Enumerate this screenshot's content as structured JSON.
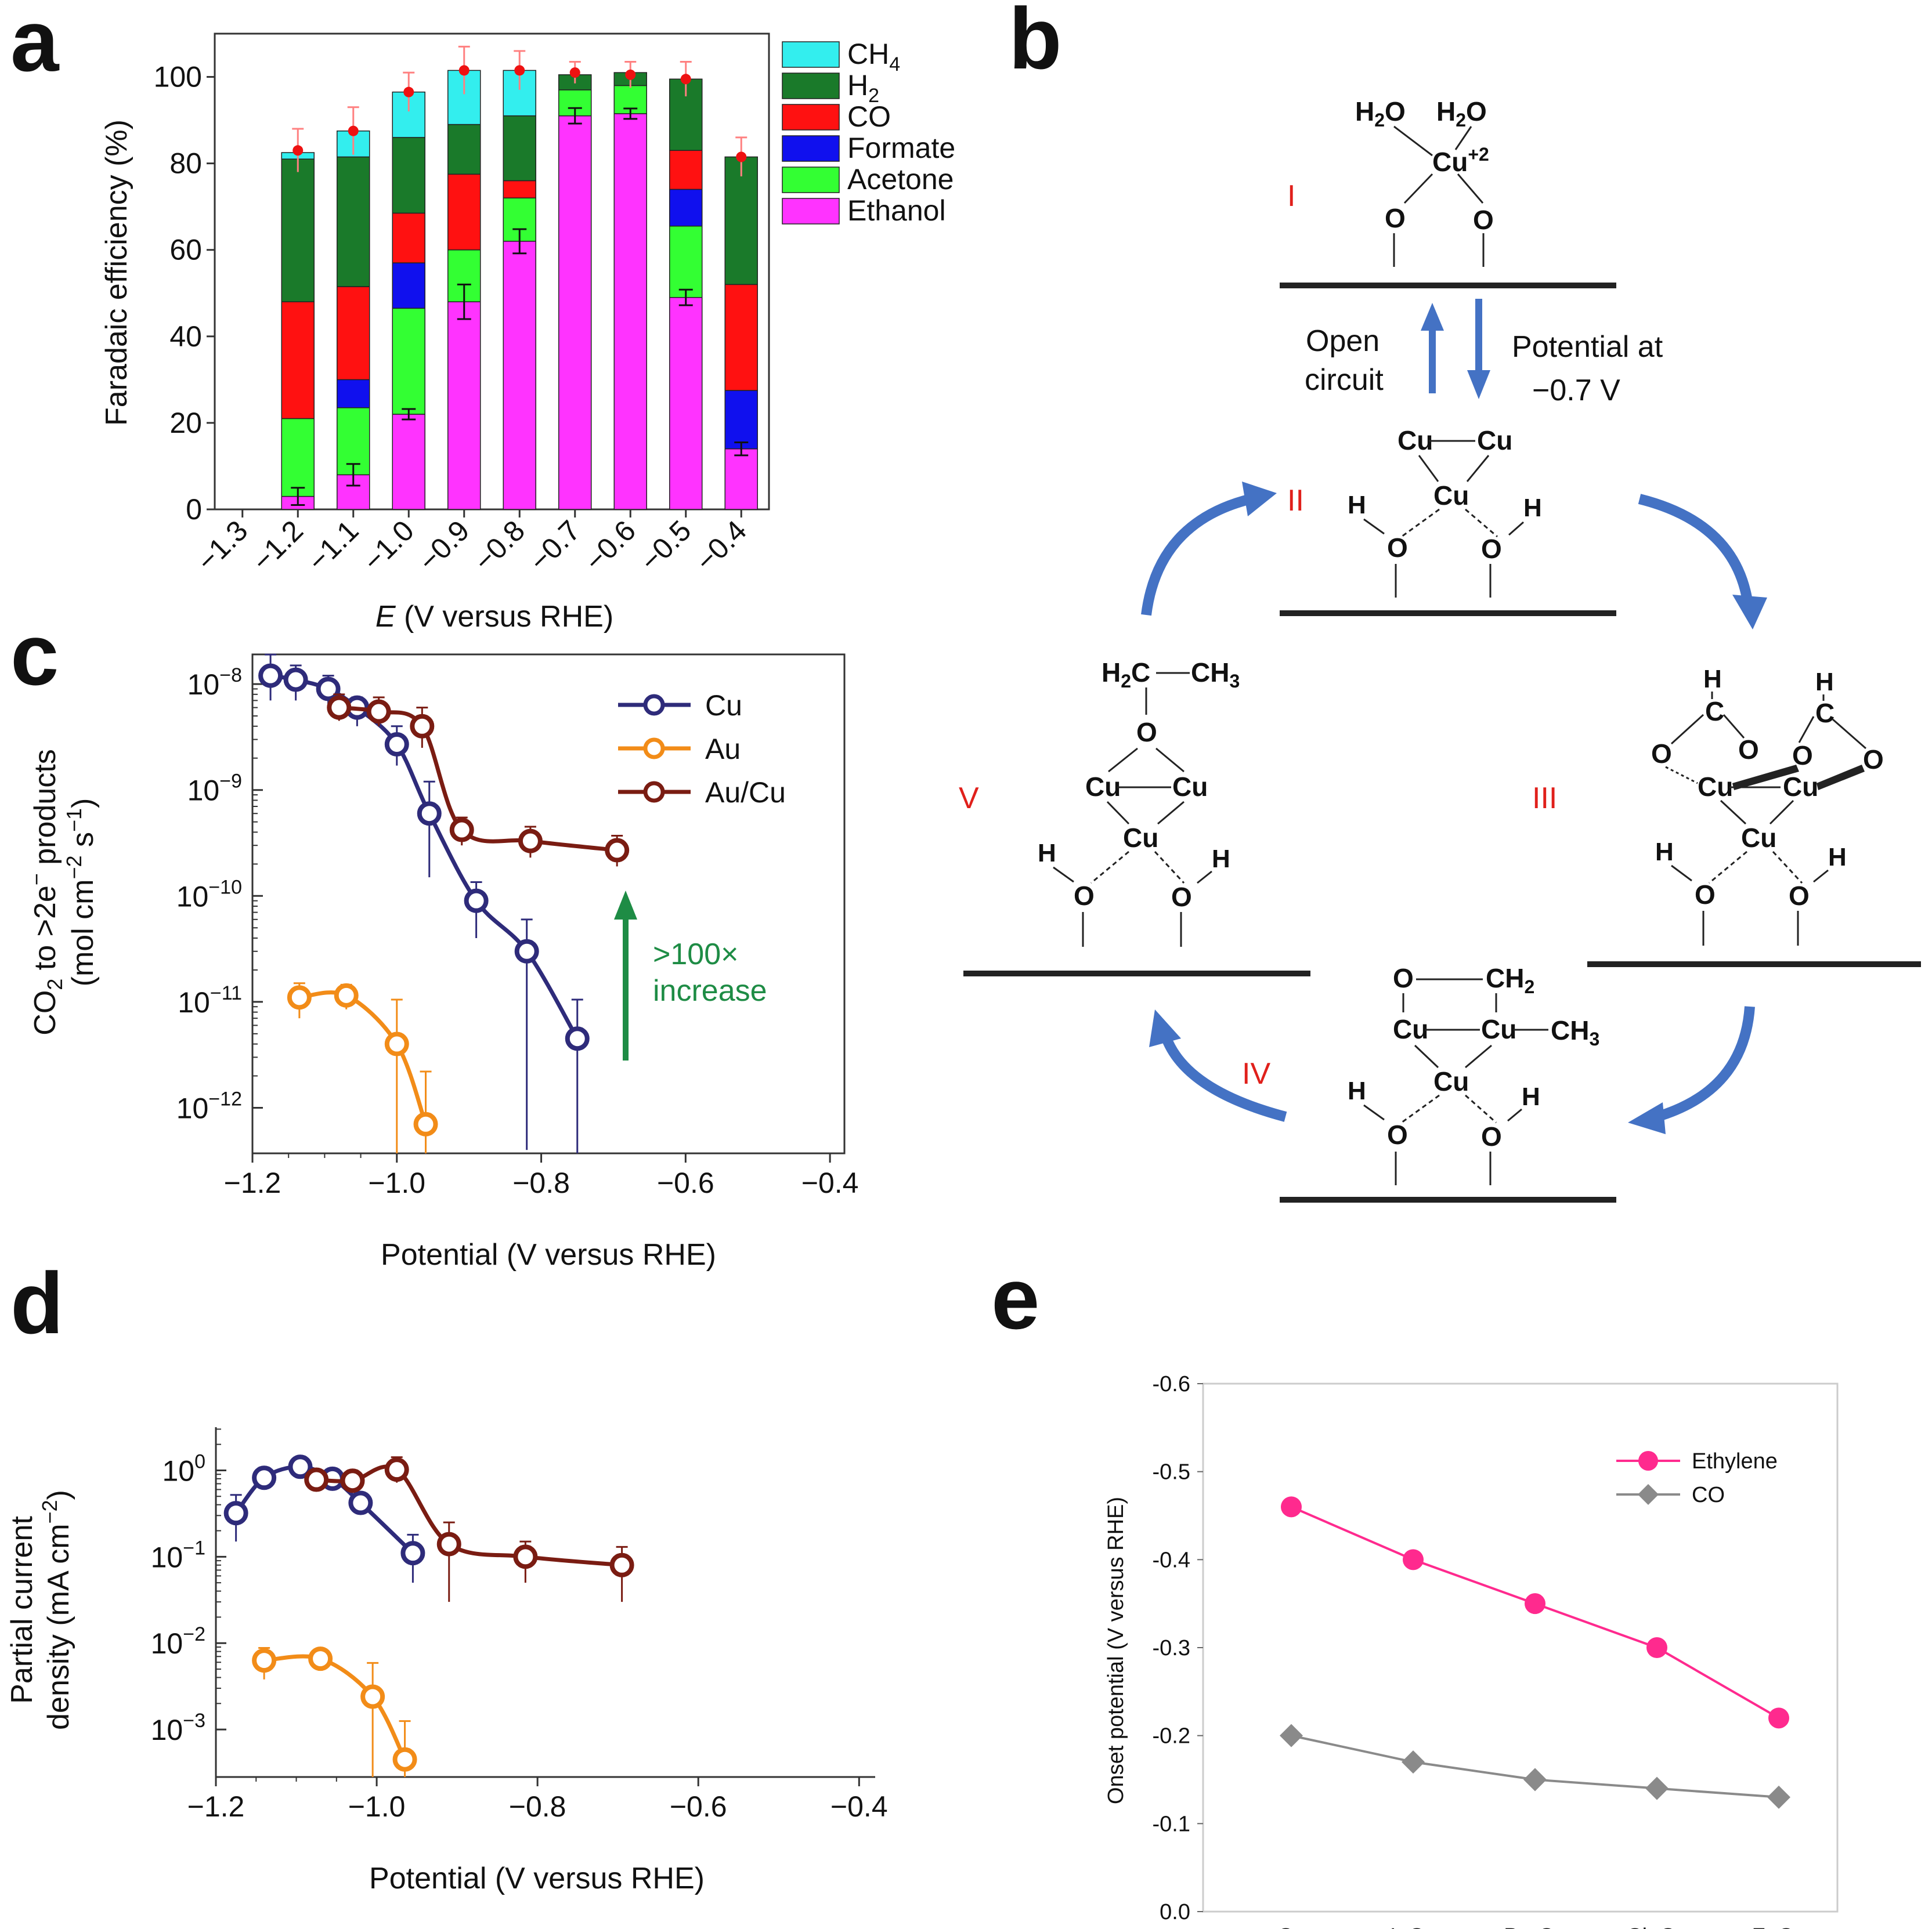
{
  "chart_data": [
    {
      "panel": "a",
      "type": "bar",
      "stacked": true,
      "xlabel_italic": "E",
      "xlabel_rest": " (V versus RHE)",
      "ylabel": "Faradaic efficiency (%)",
      "ylim": [
        0,
        110
      ],
      "yticks": [
        0,
        20,
        40,
        60,
        80,
        100
      ],
      "xtick_labels": [
        "−1.3",
        "−1.2",
        "−1.1",
        "−1.0",
        "−0.9",
        "−0.8",
        "−0.7",
        "−0.6",
        "−0.5",
        "−0.4"
      ],
      "categories": [
        "−1.2",
        "−1.1",
        "−1.0",
        "−0.9",
        "−0.8",
        "−0.7",
        "−0.6",
        "−0.5",
        "−0.4"
      ],
      "legend": [
        {
          "main": "CH",
          "sub": "4"
        },
        {
          "main": "H",
          "sub": "2"
        },
        {
          "main": "CO",
          "sub": ""
        },
        {
          "main": "Formate",
          "sub": ""
        },
        {
          "main": "Acetone",
          "sub": ""
        },
        {
          "main": "Ethanol",
          "sub": ""
        }
      ],
      "series": [
        {
          "name": "Ethanol",
          "color": "#ff33ff",
          "values": [
            3,
            8,
            22,
            48,
            62,
            91,
            91.5,
            49,
            14
          ]
        },
        {
          "name": "Acetone",
          "color": "#33ff33",
          "values": [
            18,
            15.5,
            24.5,
            12,
            10,
            6,
            6.5,
            16.5,
            0
          ]
        },
        {
          "name": "Formate",
          "color": "#1010ee",
          "values": [
            0,
            6.5,
            10.5,
            0,
            0,
            0,
            0,
            8.5,
            13.5
          ]
        },
        {
          "name": "CO",
          "color": "#ff1111",
          "values": [
            27,
            21.5,
            11.5,
            17.5,
            4,
            0,
            0,
            9,
            24.5
          ]
        },
        {
          "name": "H2",
          "color": "#1a7a2a",
          "values": [
            33,
            30,
            17.5,
            11.5,
            15,
            3.5,
            3,
            16.5,
            29.5
          ]
        },
        {
          "name": "CH4",
          "color": "#33eeee",
          "values": [
            1.5,
            6,
            10.5,
            12.5,
            10.5,
            0,
            0,
            0,
            0
          ]
        }
      ],
      "total_points": [
        83,
        87.5,
        96.5,
        101.5,
        101.5,
        101,
        100.5,
        99.5,
        81.5
      ],
      "total_err": [
        5,
        5.5,
        4.5,
        5.5,
        4.5,
        2.5,
        3,
        4,
        4.5
      ],
      "ethanol_err": [
        2,
        2.5,
        1.2,
        4,
        2.8,
        1.8,
        1.2,
        1.8,
        1.5
      ]
    },
    {
      "panel": "c",
      "type": "line",
      "yscale": "log",
      "xlabel": "Potential (V versus RHE)",
      "ylabel_line1": "CO",
      "ylabel_line1_sub": "2",
      "ylabel_line1_rest": " to >2e",
      "ylabel_line1_sup": "−",
      "ylabel_line1_end": " products",
      "ylabel_line2_a": "(mol cm",
      "ylabel_line2_sup1": "−2",
      "ylabel_line2_b": " s",
      "ylabel_line2_sup2": "−1",
      "ylabel_line2_c": ")",
      "xlim": [
        -1.2,
        -0.38
      ],
      "xticks": [
        -1.2,
        -1.0,
        -0.8,
        -0.6,
        -0.4
      ],
      "xtick_labels": [
        "−1.2",
        "−1.0",
        "−0.8",
        "−0.6",
        "−0.4"
      ],
      "ytick_labels": [
        {
          "base": "10",
          "exp": "−8"
        },
        {
          "base": "10",
          "exp": "−9"
        },
        {
          "base": "10",
          "exp": "−10"
        },
        {
          "base": "10",
          "exp": "−11"
        },
        {
          "base": "10",
          "exp": "−12"
        }
      ],
      "annotation_line1": ">100×",
      "annotation_line2": "increase",
      "series": [
        {
          "name": "Cu",
          "color": "#2e2b7a",
          "x": [
            -1.175,
            -1.14,
            -1.095,
            -1.055,
            -1.0,
            -0.955,
            -0.89,
            -0.82,
            -0.75
          ],
          "y": [
            1.2e-08,
            1.1e-08,
            9e-09,
            6e-09,
            2.7e-09,
            6e-10,
            9e-11,
            3e-11,
            4.5e-12
          ],
          "err_lo": [
            5e-09,
            4e-09,
            3e-09,
            2e-09,
            1e-09,
            4.5e-10,
            5e-11,
            2.96e-11,
            4.4e-12
          ],
          "err_hi": [
            7e-09,
            4e-09,
            3e-09,
            1.5e-09,
            1.3e-09,
            6e-10,
            4.5e-11,
            3e-11,
            6e-12
          ]
        },
        {
          "name": "Au",
          "color": "#f28c18",
          "x": [
            -1.135,
            -1.07,
            -1.0,
            -0.96
          ],
          "y": [
            1.1e-11,
            1.15e-11,
            4e-12,
            7e-13
          ],
          "err_lo": [
            4e-12,
            3e-12,
            3.99e-12,
            6.9e-13
          ],
          "err_hi": [
            4e-12,
            3e-12,
            6.5e-12,
            1.5e-12
          ]
        },
        {
          "name": "Au/Cu",
          "color": "#7a1c12",
          "x": [
            -1.08,
            -1.025,
            -0.965,
            -0.91,
            -0.815,
            -0.695
          ],
          "y": [
            6e-09,
            5.5e-09,
            4e-09,
            4.2e-10,
            3.3e-10,
            2.7e-10
          ],
          "err_lo": [
            1.5e-09,
            1.5e-09,
            1.5e-09,
            1.2e-10,
            1e-10,
            8e-11
          ],
          "err_hi": [
            2e-09,
            2e-09,
            2e-09,
            1.3e-10,
            1.2e-10,
            1e-10
          ]
        }
      ]
    },
    {
      "panel": "d",
      "type": "line",
      "yscale": "log",
      "xlabel": "Potential (V versus RHE)",
      "ylabel_line1": "Partial current",
      "ylabel_line2_a": "density (mA cm",
      "ylabel_line2_sup": "−2",
      "ylabel_line2_c": ")",
      "xlim": [
        -1.2,
        -0.38
      ],
      "xticks": [
        -1.2,
        -1.0,
        -0.8,
        -0.6,
        -0.4
      ],
      "xtick_labels": [
        "−1.2",
        "−1.0",
        "−0.8",
        "−0.6",
        "−0.4"
      ],
      "ytick_labels": [
        {
          "base": "10",
          "exp": "0"
        },
        {
          "base": "10",
          "exp": "−1"
        },
        {
          "base": "10",
          "exp": "−2"
        },
        {
          "base": "10",
          "exp": "−3"
        }
      ],
      "series": [
        {
          "name": "Cu",
          "color": "#2e2b7a",
          "x": [
            -1.175,
            -1.14,
            -1.095,
            -1.055,
            -1.02,
            -0.955
          ],
          "y": [
            0.32,
            0.82,
            1.1,
            0.8,
            0.42,
            0.11
          ],
          "err_lo": [
            0.17,
            0.15,
            0.2,
            0.15,
            0.1,
            0.06
          ],
          "err_hi": [
            0.2,
            0.15,
            0.2,
            0.15,
            0.12,
            0.07
          ]
        },
        {
          "name": "Au",
          "color": "#f28c18",
          "x": [
            -1.14,
            -1.07,
            -1.005,
            -0.965
          ],
          "y": [
            0.0063,
            0.0066,
            0.0024,
            0.00045
          ],
          "err_lo": [
            0.0025,
            0.0015,
            0.0023,
            0.00044
          ],
          "err_hi": [
            0.0025,
            0.0015,
            0.0035,
            0.0008
          ]
        },
        {
          "name": "Au/Cu",
          "color": "#7a1c12",
          "x": [
            -1.075,
            -1.03,
            -0.975,
            -0.91,
            -0.815,
            -0.695
          ],
          "y": [
            0.78,
            0.76,
            1.02,
            0.14,
            0.1,
            0.08
          ],
          "err_lo": [
            0.15,
            0.15,
            0.3,
            0.11,
            0.05,
            0.05
          ],
          "err_hi": [
            0.15,
            0.15,
            0.4,
            0.11,
            0.05,
            0.05
          ]
        }
      ]
    },
    {
      "panel": "e",
      "type": "line",
      "xlabel": "",
      "ylabel": "Onset potential (V versus RHE)",
      "ylim": [
        0.0,
        -0.6
      ],
      "ytick_labels": [
        "0.0",
        "-0.1",
        "-0.2",
        "-0.3",
        "-0.4",
        "-0.5",
        "-0.6"
      ],
      "categories": [
        "Cu",
        "I–Cu",
        "Br–Cu",
        "Cl–Cu",
        "F–Cu"
      ],
      "series": [
        {
          "name": "Ethylene",
          "color": "#ff2a8e",
          "marker": "circle",
          "values": [
            -0.46,
            -0.4,
            -0.35,
            -0.3,
            -0.22
          ]
        },
        {
          "name": "CO",
          "color": "#8a8a8a",
          "marker": "diamond",
          "values": [
            -0.2,
            -0.17,
            -0.15,
            -0.14,
            -0.13
          ]
        }
      ]
    }
  ],
  "panels": {
    "a": "a",
    "b": "b",
    "c": "c",
    "d": "d",
    "e": "e"
  },
  "scheme": {
    "state_I": "I",
    "state_II": "II",
    "state_III": "III",
    "state_IV": "IV",
    "state_V": "V",
    "open_circuit_1": "Open",
    "open_circuit_2": "circuit",
    "potential_1": "Potential at",
    "potential_2": "−0.7 V",
    "arrow_color": "#4472c4",
    "roman_color": "#e0201b"
  }
}
